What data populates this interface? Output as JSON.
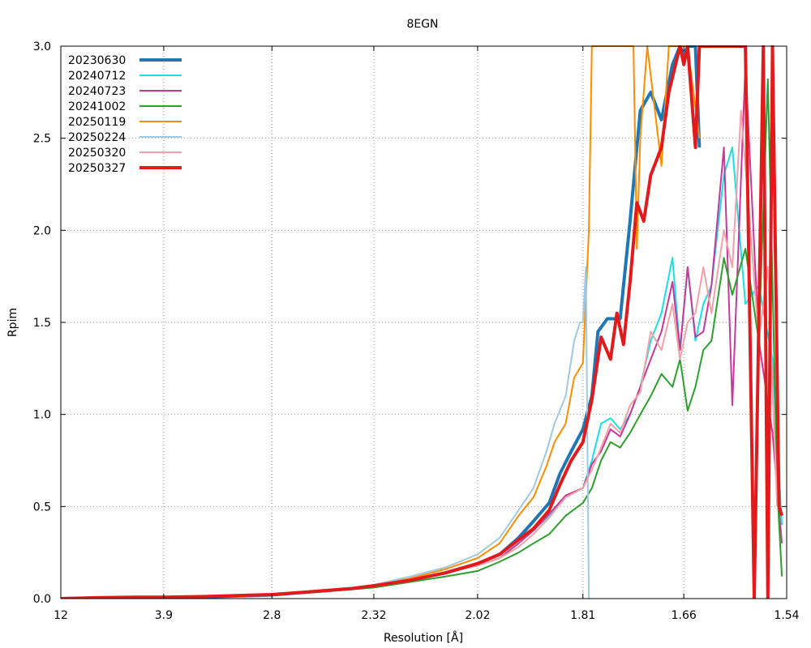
{
  "chart_data": {
    "type": "line",
    "title": "8EGN",
    "xlabel": "Resolution [Å]",
    "ylabel": "Rpim",
    "x_tick_labels": [
      "12",
      "3.9",
      "2.8",
      "2.32",
      "2.02",
      "1.81",
      "1.66",
      "1.54"
    ],
    "y_tick_labels": [
      "0.0",
      "0.5",
      "1.0",
      "1.5",
      "2.0",
      "2.5",
      "3.0"
    ],
    "ylim": [
      0,
      3
    ],
    "x_scale": "1/d^2",
    "grid": true,
    "legend_position": "top-left",
    "colors": {
      "20230630": "#1f77b4",
      "20240712": "#17e0e6",
      "20240723": "#c8389a",
      "20241002": "#2ca02c",
      "20250119": "#ff8c00",
      "20250224": "#9ecae1",
      "20250320": "#f4a0a8",
      "20250327": "#e31a1c"
    },
    "series": [
      {
        "name": "20230630",
        "color": "#1f77b4",
        "width": 4,
        "points": [
          [
            12,
            0
          ],
          [
            6,
            0.003
          ],
          [
            4.5,
            0.005
          ],
          [
            3.9,
            0.006
          ],
          [
            3.3,
            0.01
          ],
          [
            2.8,
            0.02
          ],
          [
            2.55,
            0.04
          ],
          [
            2.4,
            0.055
          ],
          [
            2.32,
            0.07
          ],
          [
            2.2,
            0.1
          ],
          [
            2.1,
            0.14
          ],
          [
            2.02,
            0.19
          ],
          [
            1.97,
            0.24
          ],
          [
            1.93,
            0.33
          ],
          [
            1.9,
            0.42
          ],
          [
            1.87,
            0.52
          ],
          [
            1.85,
            0.68
          ],
          [
            1.83,
            0.8
          ],
          [
            1.81,
            0.92
          ],
          [
            1.795,
            1.1
          ],
          [
            1.785,
            1.45
          ],
          [
            1.77,
            1.52
          ],
          [
            1.75,
            1.52
          ],
          [
            1.735,
            2.05
          ],
          [
            1.72,
            2.65
          ],
          [
            1.705,
            2.75
          ],
          [
            1.69,
            2.6
          ],
          [
            1.675,
            2.9
          ],
          [
            1.665,
            3.0
          ],
          [
            1.66,
            2.95
          ],
          [
            1.655,
            3.0
          ],
          [
            1.645,
            3.0
          ],
          [
            1.64,
            2.45
          ]
        ]
      },
      {
        "name": "20240712",
        "color": "#17e0e6",
        "width": 2,
        "points": [
          [
            12,
            0
          ],
          [
            6,
            0.003
          ],
          [
            4.5,
            0.005
          ],
          [
            3.9,
            0.006
          ],
          [
            3.3,
            0.01
          ],
          [
            2.8,
            0.02
          ],
          [
            2.55,
            0.04
          ],
          [
            2.4,
            0.055
          ],
          [
            2.32,
            0.07
          ],
          [
            2.2,
            0.1
          ],
          [
            2.1,
            0.14
          ],
          [
            2.02,
            0.18
          ],
          [
            1.97,
            0.22
          ],
          [
            1.93,
            0.3
          ],
          [
            1.9,
            0.37
          ],
          [
            1.87,
            0.45
          ],
          [
            1.84,
            0.55
          ],
          [
            1.81,
            0.6
          ],
          [
            1.795,
            0.75
          ],
          [
            1.78,
            0.95
          ],
          [
            1.765,
            0.98
          ],
          [
            1.75,
            0.92
          ],
          [
            1.735,
            1.0
          ],
          [
            1.72,
            1.15
          ],
          [
            1.705,
            1.4
          ],
          [
            1.69,
            1.55
          ],
          [
            1.675,
            1.85
          ],
          [
            1.665,
            1.35
          ],
          [
            1.655,
            1.8
          ],
          [
            1.645,
            1.4
          ],
          [
            1.635,
            1.6
          ],
          [
            1.625,
            1.7
          ],
          [
            1.61,
            2.3
          ],
          [
            1.6,
            2.45
          ],
          [
            1.585,
            1.6
          ],
          [
            1.57,
            1.7
          ],
          [
            1.555,
            1.3
          ],
          [
            1.545,
            0.4
          ]
        ]
      },
      {
        "name": "20240723",
        "color": "#c8389a",
        "width": 2,
        "points": [
          [
            12,
            0
          ],
          [
            6,
            0.003
          ],
          [
            4.5,
            0.005
          ],
          [
            3.9,
            0.006
          ],
          [
            3.3,
            0.01
          ],
          [
            2.8,
            0.02
          ],
          [
            2.55,
            0.04
          ],
          [
            2.4,
            0.055
          ],
          [
            2.32,
            0.07
          ],
          [
            2.2,
            0.1
          ],
          [
            2.1,
            0.14
          ],
          [
            2.02,
            0.18
          ],
          [
            1.97,
            0.22
          ],
          [
            1.93,
            0.3
          ],
          [
            1.9,
            0.37
          ],
          [
            1.87,
            0.46
          ],
          [
            1.84,
            0.56
          ],
          [
            1.81,
            0.6
          ],
          [
            1.795,
            0.73
          ],
          [
            1.78,
            0.8
          ],
          [
            1.765,
            0.92
          ],
          [
            1.75,
            0.88
          ],
          [
            1.735,
            1.0
          ],
          [
            1.72,
            1.15
          ],
          [
            1.705,
            1.3
          ],
          [
            1.69,
            1.45
          ],
          [
            1.675,
            1.72
          ],
          [
            1.665,
            1.35
          ],
          [
            1.655,
            1.8
          ],
          [
            1.645,
            1.42
          ],
          [
            1.635,
            1.45
          ],
          [
            1.625,
            1.7
          ],
          [
            1.61,
            2.45
          ],
          [
            1.6,
            1.05
          ],
          [
            1.585,
            2.9
          ],
          [
            1.57,
            1.4
          ],
          [
            1.555,
            0.9
          ],
          [
            1.545,
            0.3
          ]
        ]
      },
      {
        "name": "20241002",
        "color": "#2ca02c",
        "width": 2,
        "points": [
          [
            12,
            0
          ],
          [
            6,
            0.003
          ],
          [
            4.5,
            0.005
          ],
          [
            3.9,
            0.006
          ],
          [
            3.3,
            0.01
          ],
          [
            2.8,
            0.02
          ],
          [
            2.55,
            0.035
          ],
          [
            2.4,
            0.05
          ],
          [
            2.32,
            0.06
          ],
          [
            2.2,
            0.09
          ],
          [
            2.1,
            0.12
          ],
          [
            2.02,
            0.15
          ],
          [
            1.97,
            0.2
          ],
          [
            1.93,
            0.25
          ],
          [
            1.9,
            0.3
          ],
          [
            1.87,
            0.35
          ],
          [
            1.84,
            0.45
          ],
          [
            1.81,
            0.52
          ],
          [
            1.795,
            0.6
          ],
          [
            1.78,
            0.75
          ],
          [
            1.765,
            0.85
          ],
          [
            1.75,
            0.82
          ],
          [
            1.735,
            0.9
          ],
          [
            1.72,
            1.0
          ],
          [
            1.705,
            1.1
          ],
          [
            1.69,
            1.22
          ],
          [
            1.675,
            1.15
          ],
          [
            1.665,
            1.3
          ],
          [
            1.655,
            1.02
          ],
          [
            1.645,
            1.15
          ],
          [
            1.635,
            1.35
          ],
          [
            1.625,
            1.4
          ],
          [
            1.61,
            1.85
          ],
          [
            1.6,
            1.65
          ],
          [
            1.585,
            1.9
          ],
          [
            1.57,
            1.4
          ],
          [
            1.56,
            2.82
          ],
          [
            1.55,
            0.6
          ],
          [
            1.545,
            0.12
          ]
        ]
      },
      {
        "name": "20250119",
        "color": "#ff8c00",
        "width": 2,
        "points": [
          [
            12,
            0
          ],
          [
            6,
            0.003
          ],
          [
            4.5,
            0.005
          ],
          [
            3.9,
            0.006
          ],
          [
            3.3,
            0.01
          ],
          [
            2.8,
            0.02
          ],
          [
            2.55,
            0.04
          ],
          [
            2.4,
            0.055
          ],
          [
            2.32,
            0.07
          ],
          [
            2.2,
            0.11
          ],
          [
            2.1,
            0.16
          ],
          [
            2.02,
            0.22
          ],
          [
            1.97,
            0.3
          ],
          [
            1.93,
            0.45
          ],
          [
            1.9,
            0.55
          ],
          [
            1.875,
            0.72
          ],
          [
            1.86,
            0.85
          ],
          [
            1.84,
            0.95
          ],
          [
            1.825,
            1.2
          ],
          [
            1.81,
            1.28
          ],
          [
            1.8,
            2.0
          ],
          [
            1.795,
            3.0
          ],
          [
            1.73,
            3.0
          ],
          [
            1.725,
            1.9
          ],
          [
            1.72,
            2.5
          ],
          [
            1.71,
            3.0
          ],
          [
            1.69,
            2.35
          ],
          [
            1.68,
            3.0
          ],
          [
            1.665,
            3.0
          ],
          [
            1.655,
            3.0
          ],
          [
            1.64,
            2.5
          ]
        ]
      },
      {
        "name": "20250224",
        "color": "#9ecae1",
        "width": 2,
        "points": [
          [
            12,
            0
          ],
          [
            6,
            0.003
          ],
          [
            4.5,
            0.005
          ],
          [
            3.9,
            0.006
          ],
          [
            3.3,
            0.01
          ],
          [
            2.8,
            0.02
          ],
          [
            2.55,
            0.045
          ],
          [
            2.4,
            0.06
          ],
          [
            2.32,
            0.075
          ],
          [
            2.2,
            0.12
          ],
          [
            2.1,
            0.17
          ],
          [
            2.02,
            0.24
          ],
          [
            1.97,
            0.33
          ],
          [
            1.93,
            0.48
          ],
          [
            1.9,
            0.6
          ],
          [
            1.875,
            0.8
          ],
          [
            1.86,
            0.95
          ],
          [
            1.84,
            1.1
          ],
          [
            1.825,
            1.4
          ],
          [
            1.815,
            1.5
          ],
          [
            1.81,
            1.5
          ],
          [
            1.805,
            1.8
          ],
          [
            1.8,
            0.0
          ]
        ]
      },
      {
        "name": "20250320",
        "color": "#f4a0a8",
        "width": 2,
        "points": [
          [
            12,
            0
          ],
          [
            6,
            0.003
          ],
          [
            4.5,
            0.005
          ],
          [
            3.9,
            0.006
          ],
          [
            3.3,
            0.01
          ],
          [
            2.8,
            0.02
          ],
          [
            2.55,
            0.04
          ],
          [
            2.4,
            0.055
          ],
          [
            2.32,
            0.07
          ],
          [
            2.2,
            0.1
          ],
          [
            2.1,
            0.14
          ],
          [
            2.02,
            0.18
          ],
          [
            1.97,
            0.22
          ],
          [
            1.93,
            0.28
          ],
          [
            1.9,
            0.35
          ],
          [
            1.87,
            0.44
          ],
          [
            1.84,
            0.55
          ],
          [
            1.81,
            0.6
          ],
          [
            1.795,
            0.7
          ],
          [
            1.78,
            0.82
          ],
          [
            1.765,
            0.95
          ],
          [
            1.75,
            0.9
          ],
          [
            1.735,
            1.05
          ],
          [
            1.72,
            1.12
          ],
          [
            1.705,
            1.45
          ],
          [
            1.69,
            1.35
          ],
          [
            1.675,
            1.6
          ],
          [
            1.665,
            1.3
          ],
          [
            1.655,
            1.5
          ],
          [
            1.645,
            1.55
          ],
          [
            1.635,
            1.8
          ],
          [
            1.625,
            1.55
          ],
          [
            1.61,
            2.0
          ],
          [
            1.6,
            1.8
          ],
          [
            1.59,
            2.65
          ],
          [
            1.58,
            2.05
          ],
          [
            1.57,
            1.4
          ],
          [
            1.56,
            1.8
          ],
          [
            1.55,
            0.5
          ]
        ]
      },
      {
        "name": "20250327",
        "color": "#e31a1c",
        "width": 4,
        "points": [
          [
            12,
            0
          ],
          [
            6,
            0.005
          ],
          [
            4.5,
            0.008
          ],
          [
            3.9,
            0.008
          ],
          [
            3.3,
            0.012
          ],
          [
            2.8,
            0.022
          ],
          [
            2.55,
            0.04
          ],
          [
            2.4,
            0.055
          ],
          [
            2.32,
            0.07
          ],
          [
            2.2,
            0.1
          ],
          [
            2.1,
            0.14
          ],
          [
            2.02,
            0.19
          ],
          [
            1.97,
            0.24
          ],
          [
            1.93,
            0.32
          ],
          [
            1.9,
            0.38
          ],
          [
            1.87,
            0.48
          ],
          [
            1.85,
            0.62
          ],
          [
            1.83,
            0.75
          ],
          [
            1.81,
            0.85
          ],
          [
            1.795,
            1.08
          ],
          [
            1.78,
            1.42
          ],
          [
            1.765,
            1.3
          ],
          [
            1.755,
            1.55
          ],
          [
            1.745,
            1.38
          ],
          [
            1.735,
            1.72
          ],
          [
            1.725,
            2.15
          ],
          [
            1.715,
            2.05
          ],
          [
            1.705,
            2.3
          ],
          [
            1.69,
            2.45
          ],
          [
            1.68,
            2.75
          ],
          [
            1.665,
            3.0
          ],
          [
            1.66,
            2.9
          ],
          [
            1.655,
            3.0
          ],
          [
            1.645,
            2.45
          ],
          [
            1.64,
            3.0
          ],
          [
            1.585,
            3.0
          ],
          [
            1.575,
            0.0
          ],
          [
            1.565,
            3.0
          ],
          [
            1.56,
            0.0
          ],
          [
            1.555,
            3.0
          ],
          [
            1.548,
            0.5
          ],
          [
            1.545,
            0.45
          ]
        ]
      }
    ]
  }
}
